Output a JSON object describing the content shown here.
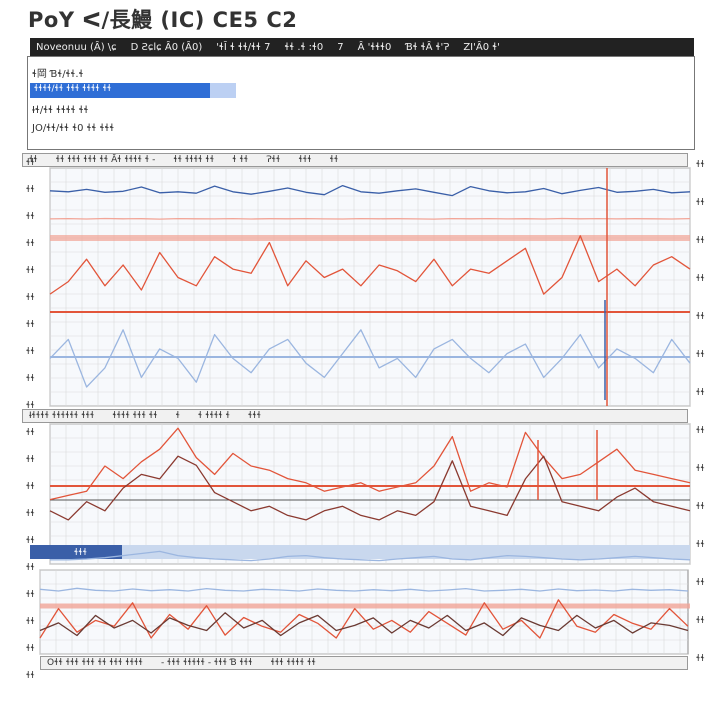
{
  "window": {
    "title": "PoY ᐸ/長鰻 (IC)   CE5 C2",
    "toolbar_items": [
      "Noveonuu (Ȃ) \\ɕ",
      "D Ƨɕlɕ Ȃ0 (Ȃ0)",
      "'ɬĪ ɬ ɬɬ/ɬɬ 7",
      "ɬɬ .ɬ :ɬ0",
      "7",
      "Ȃ 'ɬɬɬ0",
      "Ɓɬ ɬȂ ɬ'Ɂ",
      "ZI'Ȃ0 ɬ'"
    ],
    "panel_lines": [
      "ɬ岡  Ɓɬ/ɬɬ.ɬ",
      "Ɨɬ/ɬɬ ɬɬɬɬ ɬɬ",
      "ɬɬɬ/ɬɬ ɬɬ",
      "JO/ɬɬ/ɬɬ ɬ0   ɬɬ ɬɬɬ"
    ],
    "selection_text": "ɬɬɬɬ/ɬɬ  ɬɬɬ ɬɬɬɬ ɬɬ"
  },
  "headers": {
    "h1": [
      "ɬɬ",
      "ɬɬ ɬɬɬ ɬɬɬ ɬɬ  Ȃɬ ɬɬɬɬ ɬ -",
      "ɬɬ ɬɬɬɬ ɬɬ",
      "ɬ  ɬɬ",
      "Ɂɬɬ",
      "ɬɬɬ",
      "ɬɬ"
    ],
    "h2": [
      "Ɨɬɬɬɬ ɬɬɬɬɬɬ ɬɬɬ",
      "ɬɬɬɬ ɬɬɬ ɬɬ",
      "ɬ",
      "ɬ ɬɬɬɬ ɬ",
      "ɬɬɬ"
    ],
    "h3": [
      "Oɬɬ  ɬɬɬ ɬɬɬ ɬɬ ɬɬɬ ɬɬɬɬ",
      "- ɬɬɬ ɬɬɬɬɬ - ɬɬɬ Ɓ ɬɬɬ",
      "ɬɬɬ ɬɬɬɬ ɬɬ"
    ]
  },
  "left_labels": [
    "ɬɬ",
    "ɬɬ",
    "ɬɬ",
    "ɬɬ",
    "ɬɬ",
    "ɬɬ",
    "ɬɬ",
    "ɬɬ",
    "ɬɬ",
    "ɬɬ",
    "ɬɬ",
    "ɬɬ",
    "ɬɬ",
    "ɬɬ",
    "ɬɬ",
    "ɬɬ",
    "ɬɬ",
    "ɬɬ",
    "ɬɬ",
    "ɬɬ"
  ],
  "right_labels": [
    "ɬɬ",
    "ɬɬ",
    "ɬɬ",
    "ɬɬ",
    "ɬɬ",
    "ɬɬ",
    "ɬɬ",
    "ɬɬ",
    "ɬɬ",
    "ɬɬ",
    "ɬɬ",
    "ɬɬ",
    "ɬɬ",
    "ɬɬ"
  ],
  "bottom_bar_label": "ɬɬɬ",
  "colors": {
    "blue": "#3a5fa8",
    "red": "#e2553a",
    "pink": "#f2a597",
    "light_blue": "#9bb6e0",
    "grid": "#d9d9d9"
  },
  "chart_data": [
    {
      "type": "line",
      "series": [
        {
          "values": [
            0.52,
            0.5,
            0.55,
            0.49,
            0.51,
            0.6,
            0.48,
            0.5,
            0.47,
            0.62,
            0.5,
            0.45,
            0.51,
            0.58,
            0.49,
            0.44,
            0.63,
            0.5,
            0.47,
            0.52,
            0.56,
            0.49,
            0.42,
            0.61,
            0.52,
            0.48,
            0.5,
            0.57,
            0.46,
            0.53,
            0.59,
            0.49,
            0.51,
            0.55,
            0.48,
            0.5
          ]
        },
        {
          "values": [
            0.15,
            0.18,
            0.14,
            0.2,
            0.16,
            0.17,
            0.13,
            0.19,
            0.16,
            0.15,
            0.18,
            0.14,
            0.17,
            0.16,
            0.19,
            0.15,
            0.14,
            0.18,
            0.16,
            0.17,
            0.15,
            0.13,
            0.19,
            0.16,
            0.18,
            0.15,
            0.17,
            0.14,
            0.2,
            0.16,
            0.18,
            0.15,
            0.17,
            0.16,
            0.14,
            0.18
          ]
        },
        {
          "values": [
            0.2,
            0.35,
            0.62,
            0.3,
            0.55,
            0.25,
            0.7,
            0.4,
            0.3,
            0.65,
            0.5,
            0.45,
            0.82,
            0.3,
            0.6,
            0.4,
            0.5,
            0.3,
            0.55,
            0.48,
            0.35,
            0.62,
            0.3,
            0.5,
            0.45,
            0.6,
            0.75,
            0.2,
            0.4,
            0.9,
            0.35,
            0.5,
            0.3,
            0.55,
            0.65,
            0.5
          ]
        },
        {
          "values": [
            0.5,
            0.7,
            0.2,
            0.4,
            0.8,
            0.3,
            0.6,
            0.5,
            0.25,
            0.75,
            0.5,
            0.35,
            0.6,
            0.7,
            0.45,
            0.3,
            0.55,
            0.8,
            0.4,
            0.5,
            0.3,
            0.6,
            0.7,
            0.5,
            0.35,
            0.55,
            0.65,
            0.3,
            0.5,
            0.75,
            0.4,
            0.6,
            0.5,
            0.35,
            0.7,
            0.45
          ]
        }
      ]
    },
    {
      "type": "line",
      "series": [
        {
          "values": [
            0.1,
            0.15,
            0.2,
            0.5,
            0.35,
            0.55,
            0.7,
            0.95,
            0.6,
            0.4,
            0.65,
            0.5,
            0.45,
            0.35,
            0.3,
            0.2,
            0.25,
            0.3,
            0.2,
            0.25,
            0.3,
            0.5,
            0.85,
            0.2,
            0.3,
            0.25,
            0.9,
            0.6,
            0.35,
            0.4,
            0.55,
            0.7,
            0.45,
            0.4,
            0.35,
            0.3
          ]
        },
        {
          "values": [
            0.2,
            0.1,
            0.3,
            0.2,
            0.45,
            0.6,
            0.55,
            0.8,
            0.7,
            0.4,
            0.3,
            0.2,
            0.25,
            0.15,
            0.1,
            0.2,
            0.25,
            0.15,
            0.1,
            0.2,
            0.15,
            0.3,
            0.75,
            0.25,
            0.2,
            0.15,
            0.55,
            0.8,
            0.3,
            0.25,
            0.2,
            0.35,
            0.45,
            0.3,
            0.25,
            0.2
          ]
        },
        {
          "values": [
            0.1,
            0.1,
            0.12,
            0.15,
            0.2,
            0.25,
            0.3,
            0.2,
            0.15,
            0.12,
            0.1,
            0.08,
            0.12,
            0.18,
            0.2,
            0.15,
            0.12,
            0.1,
            0.08,
            0.12,
            0.15,
            0.18,
            0.12,
            0.1,
            0.15,
            0.2,
            0.18,
            0.15,
            0.12,
            0.1,
            0.12,
            0.15,
            0.18,
            0.15,
            0.12,
            0.1
          ]
        }
      ]
    },
    {
      "type": "line",
      "series": [
        {
          "values": [
            0.55,
            0.5,
            0.58,
            0.52,
            0.5,
            0.56,
            0.51,
            0.54,
            0.5,
            0.57,
            0.52,
            0.5,
            0.55,
            0.53,
            0.5,
            0.56,
            0.52,
            0.5,
            0.54,
            0.51,
            0.55,
            0.5,
            0.53,
            0.57,
            0.5,
            0.52,
            0.55,
            0.5,
            0.56,
            0.51,
            0.53,
            0.5,
            0.55,
            0.52,
            0.54,
            0.5
          ]
        },
        {
          "values": [
            0.2,
            0.7,
            0.3,
            0.5,
            0.4,
            0.8,
            0.2,
            0.6,
            0.35,
            0.75,
            0.25,
            0.55,
            0.4,
            0.3,
            0.6,
            0.45,
            0.2,
            0.7,
            0.35,
            0.5,
            0.3,
            0.65,
            0.45,
            0.25,
            0.8,
            0.35,
            0.5,
            0.2,
            0.85,
            0.4,
            0.3,
            0.6,
            0.45,
            0.35,
            0.7,
            0.4
          ]
        },
        {
          "values": [
            0.3,
            0.45,
            0.2,
            0.6,
            0.35,
            0.5,
            0.25,
            0.55,
            0.4,
            0.3,
            0.65,
            0.35,
            0.5,
            0.2,
            0.45,
            0.6,
            0.3,
            0.4,
            0.55,
            0.25,
            0.5,
            0.35,
            0.6,
            0.3,
            0.45,
            0.2,
            0.55,
            0.4,
            0.3,
            0.6,
            0.35,
            0.5,
            0.25,
            0.45,
            0.4,
            0.3
          ]
        }
      ]
    }
  ]
}
